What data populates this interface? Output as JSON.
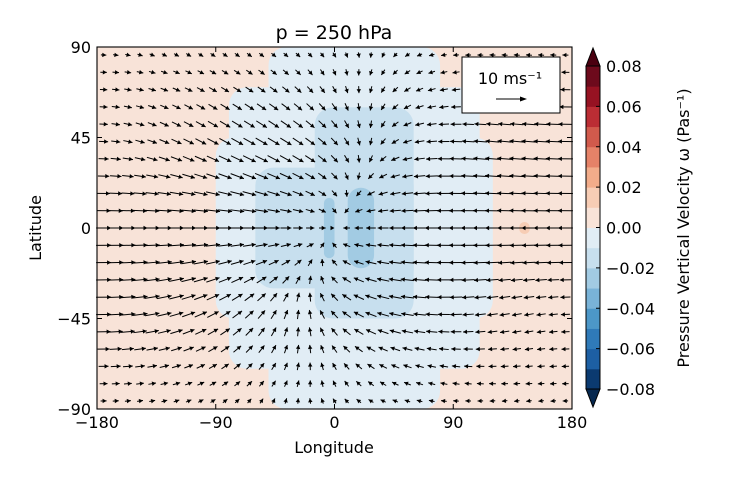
{
  "chart_data": {
    "type": "heatmap",
    "title": "p = 250 hPa",
    "xlabel": "Longitude",
    "ylabel": "Latitude",
    "xlim": [
      -180,
      180
    ],
    "ylim": [
      -90,
      90
    ],
    "xticks": [
      "−180",
      "−90",
      "0",
      "90",
      "180"
    ],
    "yticks": [
      "90",
      "45",
      "0",
      "−45",
      "−90"
    ],
    "xtick_values": [
      -180,
      -90,
      0,
      90,
      180
    ],
    "ytick_values": [
      90,
      45,
      0,
      -45,
      -90
    ],
    "colorbar": {
      "label": "Pressure Vertical Velocity ω (Pas⁻¹)",
      "levels": [
        -0.08,
        -0.07,
        -0.06,
        -0.05,
        -0.04,
        -0.03,
        -0.02,
        -0.01,
        0.0,
        0.01,
        0.02,
        0.03,
        0.04,
        0.05,
        0.06,
        0.07,
        0.08
      ],
      "colors": [
        "#0b3a70",
        "#1d5fa3",
        "#2f7ab8",
        "#4c97c8",
        "#79b3d8",
        "#a2cbe3",
        "#c7dfee",
        "#e1edf5",
        "#f8e3d8",
        "#f7cdb5",
        "#f2ac8a",
        "#e58268",
        "#d15a4c",
        "#bb2d34",
        "#961222",
        "#6d0a1c"
      ],
      "ticks": [
        "0.08",
        "0.06",
        "0.04",
        "0.02",
        "0.00",
        "−0.02",
        "−0.04",
        "−0.06",
        "−0.08"
      ],
      "tick_values": [
        0.08,
        0.06,
        0.04,
        0.02,
        0.0,
        -0.02,
        -0.04,
        -0.06,
        -0.08
      ],
      "extend": "both"
    },
    "omega_regions": [
      {
        "lon": [
          -180,
          180
        ],
        "lat": [
          -90,
          90
        ],
        "omega": 0.005
      },
      {
        "lon": [
          -50,
          80
        ],
        "lat": [
          -90,
          90
        ],
        "omega": -0.005
      },
      {
        "lon": [
          -80,
          110
        ],
        "lat": [
          -70,
          70
        ],
        "omega": -0.005
      },
      {
        "lon": [
          -90,
          120
        ],
        "lat": [
          -45,
          45
        ],
        "omega": -0.005
      },
      {
        "lon": [
          -60,
          60
        ],
        "lat": [
          -30,
          30
        ],
        "omega": -0.015
      },
      {
        "lon": [
          -15,
          60
        ],
        "lat": [
          -45,
          60
        ],
        "omega": -0.015
      },
      {
        "lon": [
          -8,
          0
        ],
        "lat": [
          -15,
          15
        ],
        "omega": -0.025
      },
      {
        "lon": [
          10,
          30
        ],
        "lat": [
          -20,
          20
        ],
        "omega": -0.025
      },
      {
        "lon": [
          140,
          148
        ],
        "lat": [
          -3,
          3
        ],
        "omega": 0.015
      }
    ],
    "wind_reference": {
      "label": "10 ms⁻¹",
      "speed": 10,
      "units": "m/s",
      "legend_position": "top-right"
    },
    "wind_field": {
      "description": "Gill-type circulation: convergent easterlies / westerlies toward a central meridional band; rotating flow about mid-latitude centers.",
      "lon_range": [
        -175,
        175
      ],
      "lat_range": [
        -86,
        86
      ],
      "lon_count": 39,
      "lat_count": 21
    }
  }
}
